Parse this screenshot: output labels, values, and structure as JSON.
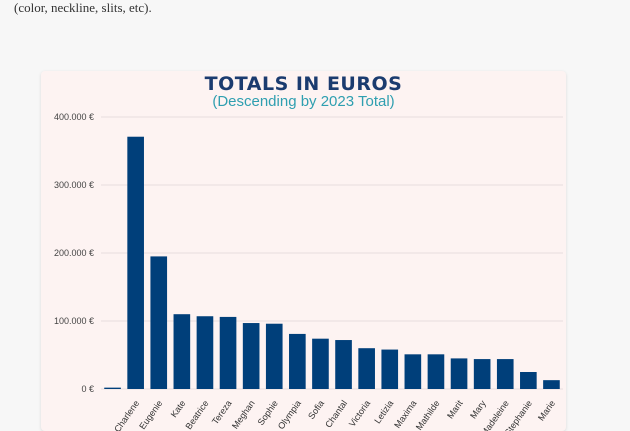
{
  "page": {
    "intro_text": "(color, neckline, slits, etc)."
  },
  "colors": {
    "bar": "#003f7a",
    "title": "#1b3b6f",
    "subtitle": "#2f9fb0",
    "card_bg": "#fdf3f2",
    "grid": "#e6dede"
  },
  "chart_data": {
    "type": "bar",
    "title": "TOTALS IN EUROS",
    "subtitle": "(Descending by 2023 Total)",
    "xlabel": "",
    "ylabel": "",
    "ylim": [
      0,
      400000
    ],
    "yticks": [
      0,
      100000,
      200000,
      300000,
      400000
    ],
    "ytick_labels": [
      "0 €",
      "100.000 €",
      "200.000 €",
      "300.000 €",
      "400.000 €"
    ],
    "grid": true,
    "categories": [
      "",
      "Charlene",
      "Eugenie",
      "Kate",
      "Beatrice",
      "Tereza",
      "Meghan",
      "Sophie",
      "Olympia",
      "Sofia",
      "Chantal",
      "Victoria",
      "Letizia",
      "Maxima",
      "Mathilde",
      "Marit",
      "Mary",
      "Madeleine",
      "Stephanie",
      "Marie"
    ],
    "values": [
      2000,
      371000,
      195000,
      110000,
      107000,
      106000,
      97000,
      96000,
      81000,
      74000,
      72000,
      60000,
      58000,
      51000,
      51000,
      45000,
      44000,
      44000,
      25000,
      13000
    ]
  }
}
